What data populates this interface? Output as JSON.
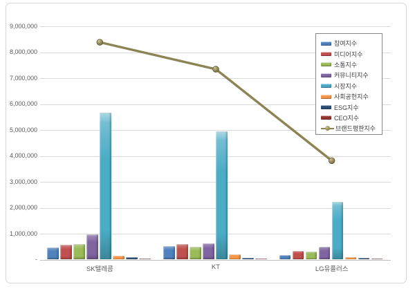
{
  "chart": {
    "outer_border_color": "#d5d5d5",
    "gridline_color": "#d9d9d9",
    "axis_line_color": "#bfbfbf",
    "axis_label_color": "#595959",
    "background": "#ffffff"
  },
  "chart_data": {
    "type": "combo-bar-line",
    "title": "",
    "xlabel": "",
    "ylabel": "",
    "grid": "horizontal",
    "legend_position": "top-right",
    "categories": [
      "SK텔레콤",
      "KT",
      "LG유플러스"
    ],
    "bar_series": [
      {
        "name": "참여지수",
        "color": "#4F81BD",
        "values": [
          480000,
          530000,
          175000
        ]
      },
      {
        "name": "미디어지수",
        "color": "#C0504D",
        "values": [
          565000,
          600000,
          325000
        ]
      },
      {
        "name": "소통지수",
        "color": "#9BBB59",
        "values": [
          610000,
          490000,
          305000
        ]
      },
      {
        "name": "커뮤니티지수",
        "color": "#8064A2",
        "values": [
          965000,
          620000,
          500000
        ]
      },
      {
        "name": "시장지수",
        "color": "#4BACC6",
        "values": [
          5670000,
          4950000,
          2230000
        ]
      },
      {
        "name": "사회공헌지수",
        "color": "#F79646",
        "values": [
          150000,
          190000,
          100000
        ]
      },
      {
        "name": "ESG지수",
        "color": "#2C4D75",
        "values": [
          85000,
          75000,
          55000
        ]
      },
      {
        "name": "CEO지수",
        "color": "#943634",
        "values": [
          45000,
          35000,
          50000
        ]
      }
    ],
    "line_series": {
      "name": "브랜드평판지수",
      "color": "#8C8455",
      "values": [
        8390000,
        7350000,
        3820000
      ]
    },
    "y_axis": {
      "min": 0,
      "max": 9000000,
      "tick_interval": 1000000,
      "tick_labels": [
        "-",
        "1,000,000",
        "2,000,000",
        "3,000,000",
        "4,000,000",
        "5,000,000",
        "6,000,000",
        "7,000,000",
        "8,000,000",
        "9,000,000"
      ]
    }
  }
}
